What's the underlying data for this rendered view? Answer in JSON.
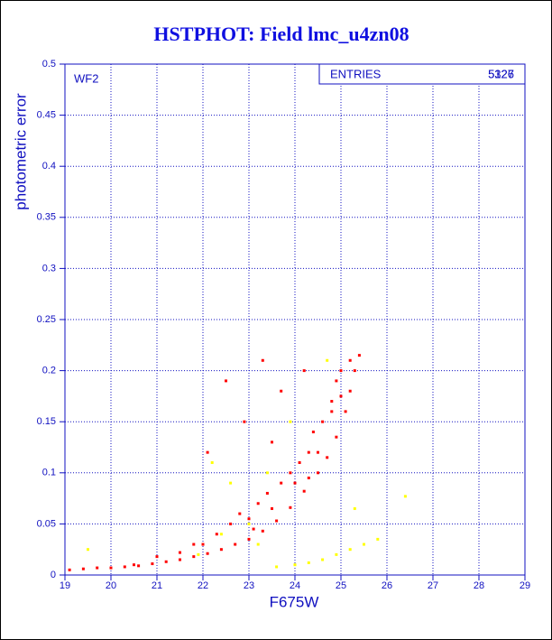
{
  "chart_data": {
    "type": "scatter",
    "title": "HSTPHOT: Field lmc_u4zn08",
    "x_label": "F675W",
    "y_label": "photometric error",
    "panel_label": "WF2",
    "stats_box": {
      "label": "ENTRIES",
      "values": [
        5127,
        5326
      ]
    },
    "xlim": [
      19,
      29
    ],
    "ylim": [
      0,
      0.5
    ],
    "xticks": [
      19,
      20,
      21,
      22,
      23,
      24,
      25,
      26,
      27,
      28,
      29
    ],
    "yticks": [
      0,
      0.05,
      0.1,
      0.15,
      0.2,
      0.25,
      0.3,
      0.35,
      0.4,
      0.45,
      0.5
    ],
    "grid": true,
    "series": [
      {
        "color": "#ffff00",
        "x": [
          19.5,
          21.9,
          22.2,
          22.6,
          23.0,
          23.4,
          23.6,
          24.0,
          24.3,
          24.6,
          24.9,
          25.2,
          25.5,
          25.8,
          26.4,
          25.3,
          24.7,
          23.9,
          23.2,
          22.4
        ],
        "y": [
          0.025,
          0.02,
          0.11,
          0.09,
          0.05,
          0.1,
          0.008,
          0.01,
          0.012,
          0.015,
          0.02,
          0.025,
          0.03,
          0.035,
          0.077,
          0.065,
          0.21,
          0.15,
          0.03,
          0.04
        ]
      },
      {
        "color": "#ff0000",
        "x": [
          19.1,
          19.4,
          19.7,
          20.0,
          20.3,
          20.6,
          20.9,
          21.2,
          21.5,
          21.8,
          22.1,
          22.4,
          22.7,
          23.0,
          23.3,
          23.6,
          23.9,
          24.2,
          24.5,
          24.7,
          24.9,
          25.1,
          25.2,
          25.3,
          25.4,
          21.0,
          21.5,
          22.0,
          22.3,
          22.6,
          22.8,
          23.0,
          23.2,
          23.4,
          23.5,
          23.7,
          23.9,
          24.1,
          24.3,
          24.4,
          24.6,
          24.8,
          24.9,
          25.0,
          25.2,
          22.9,
          23.3,
          22.5,
          23.7,
          24.2,
          22.1,
          23.5,
          24.0,
          24.5,
          24.8,
          20.5,
          21.8,
          23.1,
          24.3,
          25.0
        ],
        "y": [
          0.005,
          0.006,
          0.007,
          0.007,
          0.008,
          0.009,
          0.011,
          0.013,
          0.015,
          0.018,
          0.021,
          0.025,
          0.03,
          0.035,
          0.043,
          0.053,
          0.066,
          0.082,
          0.1,
          0.115,
          0.135,
          0.16,
          0.18,
          0.2,
          0.215,
          0.018,
          0.022,
          0.03,
          0.04,
          0.05,
          0.06,
          0.055,
          0.07,
          0.08,
          0.065,
          0.09,
          0.1,
          0.11,
          0.12,
          0.14,
          0.15,
          0.17,
          0.19,
          0.2,
          0.21,
          0.15,
          0.21,
          0.19,
          0.18,
          0.2,
          0.12,
          0.13,
          0.09,
          0.12,
          0.16,
          0.01,
          0.03,
          0.045,
          0.095,
          0.175
        ]
      }
    ]
  }
}
